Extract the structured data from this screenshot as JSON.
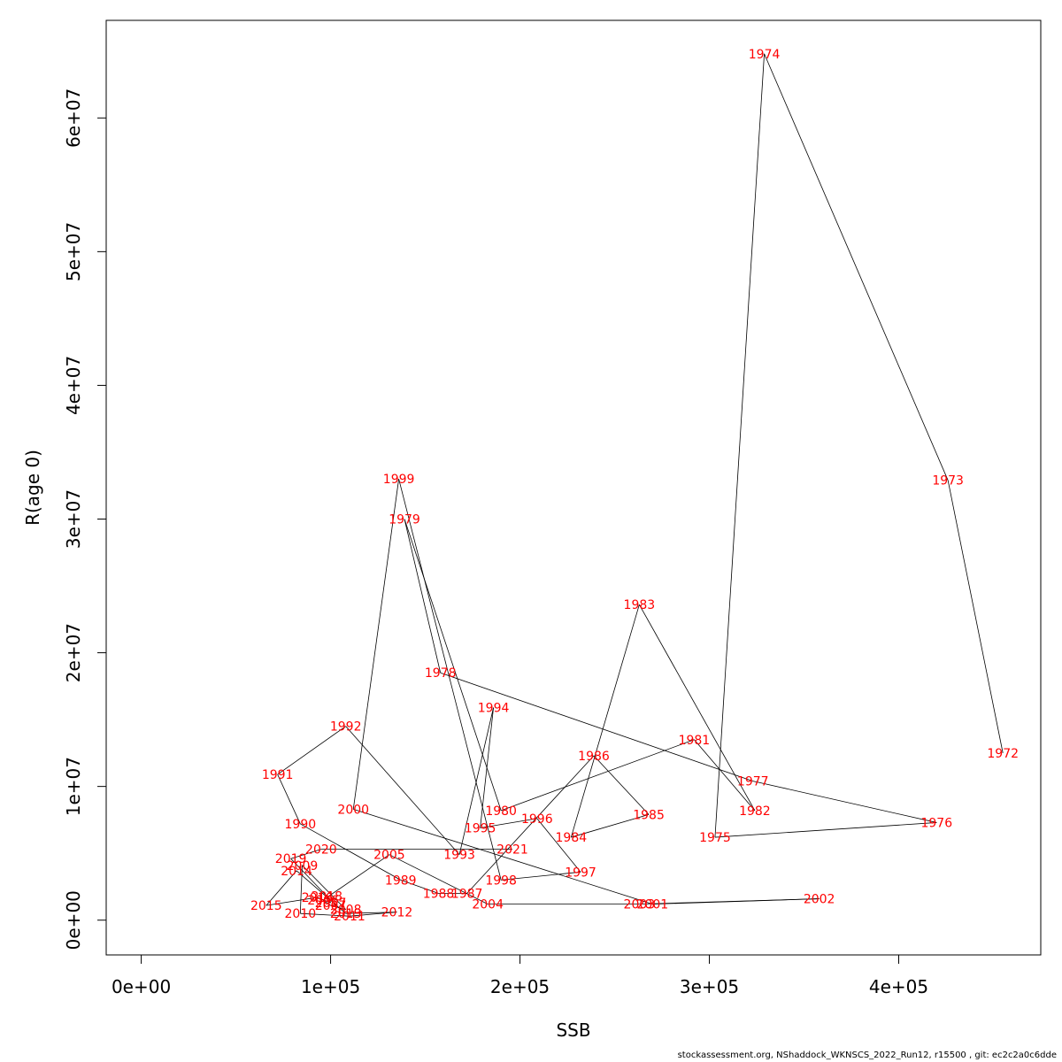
{
  "chart_data": {
    "type": "line",
    "xlabel": "SSB",
    "ylabel": "R(age 0)",
    "xlim": [
      -18500,
      475000
    ],
    "ylim": [
      -2600000,
      67300000
    ],
    "xticks": [
      0,
      100000,
      200000,
      300000,
      400000
    ],
    "xtick_labels": [
      "0e+00",
      "1e+05",
      "2e+05",
      "3e+05",
      "4e+05"
    ],
    "yticks": [
      0,
      10000000,
      20000000,
      30000000,
      40000000,
      50000000,
      60000000
    ],
    "ytick_labels": [
      "0e+00",
      "1e+07",
      "2e+07",
      "3e+07",
      "4e+07",
      "5e+07",
      "6e+07"
    ],
    "grid": false,
    "line_color": "#000000",
    "label_color": "#ff0000",
    "points": [
      {
        "year": "1972",
        "x": 455000,
        "y": 12500000
      },
      {
        "year": "1973",
        "x": 426000,
        "y": 32900000
      },
      {
        "year": "1974",
        "x": 329000,
        "y": 64800000
      },
      {
        "year": "1975",
        "x": 303000,
        "y": 6200000
      },
      {
        "year": "1976",
        "x": 420000,
        "y": 7300000
      },
      {
        "year": "1977",
        "x": 323000,
        "y": 10400000
      },
      {
        "year": "1978",
        "x": 158000,
        "y": 18500000
      },
      {
        "year": "1979",
        "x": 139000,
        "y": 30000000
      },
      {
        "year": "1980",
        "x": 190000,
        "y": 8200000
      },
      {
        "year": "1981",
        "x": 292000,
        "y": 13500000
      },
      {
        "year": "1982",
        "x": 324000,
        "y": 8200000
      },
      {
        "year": "1983",
        "x": 263000,
        "y": 23600000
      },
      {
        "year": "1984",
        "x": 227000,
        "y": 6200000
      },
      {
        "year": "1985",
        "x": 268000,
        "y": 7900000
      },
      {
        "year": "1986",
        "x": 239000,
        "y": 12300000
      },
      {
        "year": "1987",
        "x": 172000,
        "y": 2000000
      },
      {
        "year": "1988",
        "x": 157000,
        "y": 2000000
      },
      {
        "year": "1989",
        "x": 137000,
        "y": 3000000
      },
      {
        "year": "1990",
        "x": 84000,
        "y": 7200000
      },
      {
        "year": "1991",
        "x": 72000,
        "y": 10900000
      },
      {
        "year": "1992",
        "x": 108000,
        "y": 14500000
      },
      {
        "year": "1993",
        "x": 168000,
        "y": 4900000
      },
      {
        "year": "1994",
        "x": 186000,
        "y": 15900000
      },
      {
        "year": "1995",
        "x": 179000,
        "y": 6900000
      },
      {
        "year": "1996",
        "x": 209000,
        "y": 7600000
      },
      {
        "year": "1997",
        "x": 232000,
        "y": 3600000
      },
      {
        "year": "1998",
        "x": 190000,
        "y": 3000000
      },
      {
        "year": "1999",
        "x": 136000,
        "y": 33000000
      },
      {
        "year": "2000",
        "x": 112000,
        "y": 8300000
      },
      {
        "year": "2001",
        "x": 270000,
        "y": 1200000
      },
      {
        "year": "2002",
        "x": 358000,
        "y": 1600000
      },
      {
        "year": "2003",
        "x": 263000,
        "y": 1200000
      },
      {
        "year": "2004",
        "x": 183000,
        "y": 1200000
      },
      {
        "year": "2005",
        "x": 131000,
        "y": 4900000
      },
      {
        "year": "2006",
        "x": 96000,
        "y": 1500000
      },
      {
        "year": "2007",
        "x": 100000,
        "y": 1100000
      },
      {
        "year": "2008",
        "x": 108000,
        "y": 800000
      },
      {
        "year": "2009",
        "x": 85000,
        "y": 4100000
      },
      {
        "year": "2010",
        "x": 84000,
        "y": 500000
      },
      {
        "year": "2011",
        "x": 110000,
        "y": 300000
      },
      {
        "year": "2012",
        "x": 135000,
        "y": 600000
      },
      {
        "year": "2013",
        "x": 108000,
        "y": 500000
      },
      {
        "year": "2014",
        "x": 82000,
        "y": 3700000
      },
      {
        "year": "2015",
        "x": 66000,
        "y": 1100000
      },
      {
        "year": "2016",
        "x": 93000,
        "y": 1700000
      },
      {
        "year": "2017",
        "x": 100000,
        "y": 1300000
      },
      {
        "year": "2018",
        "x": 98000,
        "y": 1800000
      },
      {
        "year": "2019",
        "x": 79000,
        "y": 4600000
      },
      {
        "year": "2020",
        "x": 95000,
        "y": 5300000
      },
      {
        "year": "2021",
        "x": 196000,
        "y": 5300000
      }
    ]
  },
  "footer": {
    "text": "stockassessment.org, NShaddock_WKNSCS_2022_Run12, r15500 , git: ec2c2a0c6dde"
  }
}
